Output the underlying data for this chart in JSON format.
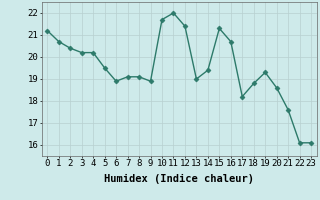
{
  "x": [
    0,
    1,
    2,
    3,
    4,
    5,
    6,
    7,
    8,
    9,
    10,
    11,
    12,
    13,
    14,
    15,
    16,
    17,
    18,
    19,
    20,
    21,
    22,
    23
  ],
  "y": [
    21.2,
    20.7,
    20.4,
    20.2,
    20.2,
    19.5,
    18.9,
    19.1,
    19.1,
    18.9,
    21.7,
    22.0,
    21.4,
    19.0,
    19.4,
    21.3,
    20.7,
    18.2,
    18.8,
    19.3,
    18.6,
    17.6,
    16.1,
    16.1
  ],
  "xlabel": "Humidex (Indice chaleur)",
  "xlim": [
    -0.5,
    23.5
  ],
  "ylim": [
    15.5,
    22.5
  ],
  "yticks": [
    16,
    17,
    18,
    19,
    20,
    21,
    22
  ],
  "xticks": [
    0,
    1,
    2,
    3,
    4,
    5,
    6,
    7,
    8,
    9,
    10,
    11,
    12,
    13,
    14,
    15,
    16,
    17,
    18,
    19,
    20,
    21,
    22,
    23
  ],
  "line_color": "#2d7a6a",
  "marker": "D",
  "marker_size": 2.5,
  "bg_color": "#ceeaea",
  "grid_color": "#b8d0d0",
  "fig_bg": "#ceeaea",
  "xlabel_fontsize": 7.5,
  "tick_fontsize": 6.5,
  "line_width": 1.0
}
